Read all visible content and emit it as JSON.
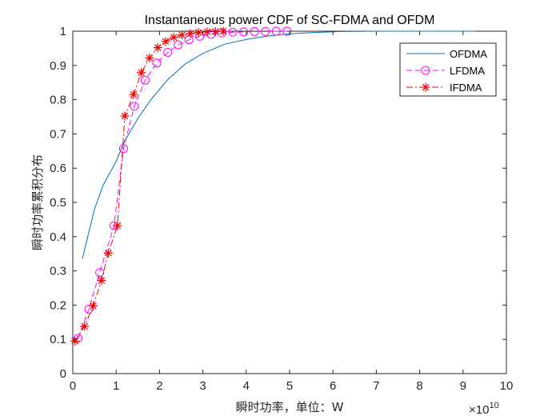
{
  "chart_data": {
    "type": "line",
    "title": "Instantaneous power CDF of SC-FDMA and OFDM",
    "xlabel": "瞬时功率，单位：W",
    "ylabel": "瞬时功率累积分布",
    "x_multiplier_base": "×10",
    "x_multiplier_exp": "10",
    "xlim": [
      0,
      10
    ],
    "ylim": [
      0,
      1
    ],
    "xticks": [
      "0",
      "1",
      "2",
      "3",
      "4",
      "5",
      "6",
      "7",
      "8",
      "9",
      "10"
    ],
    "yticks": [
      "0",
      "0.1",
      "0.2",
      "0.3",
      "0.4",
      "0.5",
      "0.6",
      "0.7",
      "0.8",
      "0.9",
      "1"
    ],
    "legend_position": "top-right",
    "series": [
      {
        "name": "OFDMA",
        "color": "#0072BD",
        "style": "solid",
        "marker": "none",
        "x": [
          0.22,
          0.5,
          0.7,
          1.0,
          1.2,
          1.5,
          1.8,
          2.2,
          2.6,
          3.0,
          3.5,
          4.0,
          4.5,
          5.0,
          5.5,
          6.2,
          7.0,
          8.0,
          9.3
        ],
        "y": [
          0.335,
          0.48,
          0.55,
          0.62,
          0.68,
          0.745,
          0.8,
          0.86,
          0.905,
          0.935,
          0.962,
          0.976,
          0.986,
          0.992,
          0.996,
          0.999,
          1.0,
          1.0,
          1.0
        ]
      },
      {
        "name": "LFDMA",
        "color": "#FF00FF",
        "style": "dashed",
        "marker": "circle",
        "x": [
          0.12,
          0.37,
          0.62,
          0.95,
          1.17,
          1.42,
          1.67,
          1.94,
          2.19,
          2.43,
          2.68,
          2.93,
          3.19,
          3.44,
          3.69,
          3.94,
          4.19,
          4.44,
          4.69,
          4.94
        ],
        "y": [
          0.103,
          0.188,
          0.295,
          0.432,
          0.657,
          0.781,
          0.857,
          0.907,
          0.938,
          0.96,
          0.975,
          0.985,
          0.991,
          0.995,
          0.997,
          0.998,
          0.999,
          0.999,
          1.0,
          1.0
        ]
      },
      {
        "name": "IFDMA",
        "color": "#EE0000",
        "style": "dashdot",
        "marker": "star",
        "x": [
          0.05,
          0.27,
          0.47,
          0.66,
          0.82,
          1.03,
          1.2,
          1.4,
          1.58,
          1.77,
          1.96,
          2.14,
          2.33,
          2.52,
          2.71,
          2.9,
          3.1,
          3.29,
          3.47
        ],
        "y": [
          0.095,
          0.138,
          0.198,
          0.272,
          0.352,
          0.432,
          0.752,
          0.815,
          0.879,
          0.922,
          0.952,
          0.97,
          0.982,
          0.989,
          0.993,
          0.996,
          0.998,
          0.999,
          1.0
        ]
      }
    ]
  }
}
